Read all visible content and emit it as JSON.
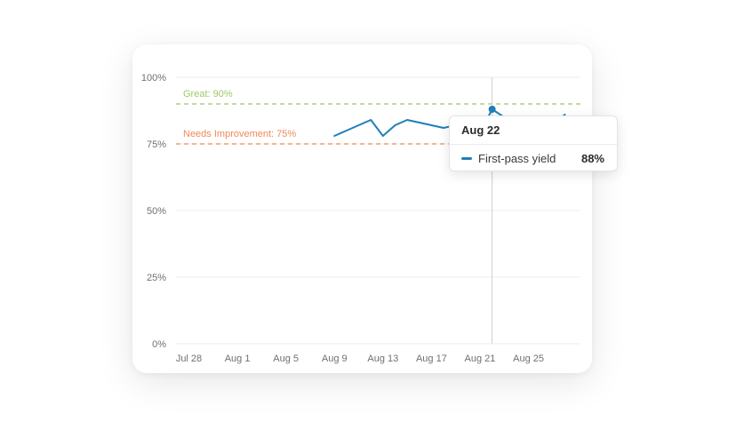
{
  "chart_data": {
    "type": "line",
    "ylim": [
      0,
      100
    ],
    "y_ticks": [
      "0%",
      "25%",
      "50%",
      "75%",
      "100%"
    ],
    "x_ticks": [
      "Jul 28",
      "Aug 1",
      "Aug 5",
      "Aug 9",
      "Aug 13",
      "Aug 17",
      "Aug 21",
      "Aug 25"
    ],
    "x": [
      "Jul 28",
      "Jul 29",
      "Jul 30",
      "Jul 31",
      "Aug 1",
      "Aug 2",
      "Aug 3",
      "Aug 4",
      "Aug 5",
      "Aug 6",
      "Aug 7",
      "Aug 8",
      "Aug 9",
      "Aug 10",
      "Aug 11",
      "Aug 12",
      "Aug 13",
      "Aug 14",
      "Aug 15",
      "Aug 16",
      "Aug 17",
      "Aug 18",
      "Aug 19",
      "Aug 20",
      "Aug 21",
      "Aug 22",
      "Aug 23",
      "Aug 24",
      "Aug 25",
      "Aug 26",
      "Aug 27",
      "Aug 28"
    ],
    "series": [
      {
        "name": "First-pass yield",
        "color": "#1f7fb8",
        "values": [
          null,
          null,
          null,
          null,
          null,
          null,
          null,
          null,
          null,
          null,
          null,
          null,
          78,
          80,
          82,
          84,
          78,
          82,
          84,
          83,
          82,
          81,
          82,
          83,
          79,
          88,
          85,
          84.5,
          84,
          83,
          82,
          86
        ]
      }
    ],
    "reference_lines": [
      {
        "label": "Great: 90%",
        "value": 90,
        "color": "#9ec76a"
      },
      {
        "label": "Needs Improvement: 75%",
        "value": 75,
        "color": "#ef8a5a"
      }
    ],
    "hover": {
      "index": 25
    },
    "grid": true,
    "legend": "none"
  },
  "tooltip": {
    "title": "Aug 22",
    "series_name": "First-pass yield",
    "value": "88%",
    "color": "#1f7fb8"
  }
}
